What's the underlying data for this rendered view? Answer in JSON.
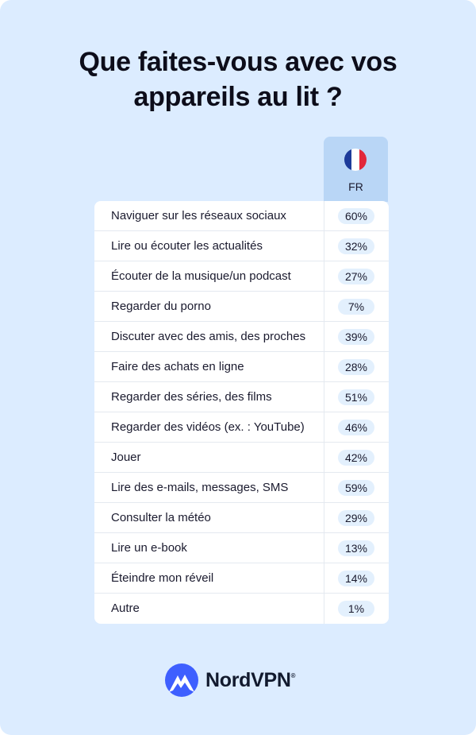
{
  "title_lines": [
    "Que faites-vous avec vos",
    "appareils au lit ?"
  ],
  "colors": {
    "background": "#dcecff",
    "header": "#b9d6f6",
    "pill": "#e3f0fd",
    "logo": "#3e5fff"
  },
  "chart_data": {
    "type": "table",
    "title": "Que faites-vous avec vos appareils au lit ?",
    "columns": [
      "FR"
    ],
    "column_icons": [
      "france-flag-icon"
    ],
    "categories": [
      "Naviguer sur les réseaux sociaux",
      "Lire ou écouter les actualités",
      "Écouter de la musique/un podcast",
      "Regarder du porno",
      "Discuter avec des amis, des proches",
      "Faire des achats en ligne",
      "Regarder des séries, des films",
      "Regarder des vidéos (ex. : YouTube)",
      "Jouer",
      "Lire des e-mails, messages, SMS",
      "Consulter la météo",
      "Lire un e-book",
      "Éteindre mon réveil",
      "Autre"
    ],
    "values": [
      60,
      32,
      27,
      7,
      39,
      28,
      51,
      46,
      42,
      59,
      29,
      13,
      14,
      1
    ],
    "unit": "%"
  },
  "logo": {
    "text": "NordVPN",
    "mark": "®"
  }
}
